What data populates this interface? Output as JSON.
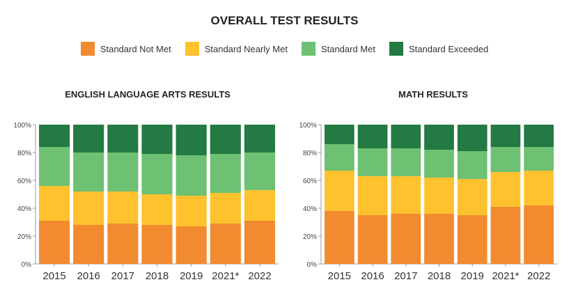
{
  "title": "OVERALL TEST RESULTS",
  "legend": [
    "Standard Not Met",
    "Standard Nearly Met",
    "Standard Met",
    "Standard Exceeded"
  ],
  "colors": [
    "#f28a30",
    "#ffc22f",
    "#6ec073",
    "#237a42"
  ],
  "chart_data": [
    {
      "type": "bar",
      "stacked": true,
      "title": "ENGLISH LANGUAGE ARTS RESULTS",
      "categories": [
        "2015",
        "2016",
        "2017",
        "2018",
        "2019",
        "2021*",
        "2022"
      ],
      "ylim": [
        0,
        100
      ],
      "yticks": [
        "0%",
        "20%",
        "40%",
        "60%",
        "80%",
        "100%"
      ],
      "series": [
        {
          "name": "Standard Not Met",
          "values": [
            31,
            28,
            29,
            28,
            27,
            29,
            31
          ]
        },
        {
          "name": "Standard Nearly Met",
          "values": [
            25,
            24,
            23,
            22,
            22,
            22,
            22
          ]
        },
        {
          "name": "Standard Met",
          "values": [
            28,
            28,
            28,
            29,
            29,
            28,
            27
          ]
        },
        {
          "name": "Standard Exceeded",
          "values": [
            16,
            20,
            20,
            21,
            22,
            21,
            20
          ]
        }
      ]
    },
    {
      "type": "bar",
      "stacked": true,
      "title": "MATH RESULTS",
      "categories": [
        "2015",
        "2016",
        "2017",
        "2018",
        "2019",
        "2021*",
        "2022"
      ],
      "ylim": [
        0,
        100
      ],
      "yticks": [
        "0%",
        "20%",
        "40%",
        "60%",
        "80%",
        "100%"
      ],
      "series": [
        {
          "name": "Standard Not Met",
          "values": [
            38,
            35,
            36,
            36,
            35,
            41,
            42
          ]
        },
        {
          "name": "Standard Nearly Met",
          "values": [
            29,
            28,
            27,
            26,
            26,
            25,
            25
          ]
        },
        {
          "name": "Standard Met",
          "values": [
            19,
            20,
            20,
            20,
            20,
            18,
            17
          ]
        },
        {
          "name": "Standard Exceeded",
          "values": [
            14,
            17,
            17,
            18,
            19,
            16,
            16
          ]
        }
      ]
    }
  ]
}
